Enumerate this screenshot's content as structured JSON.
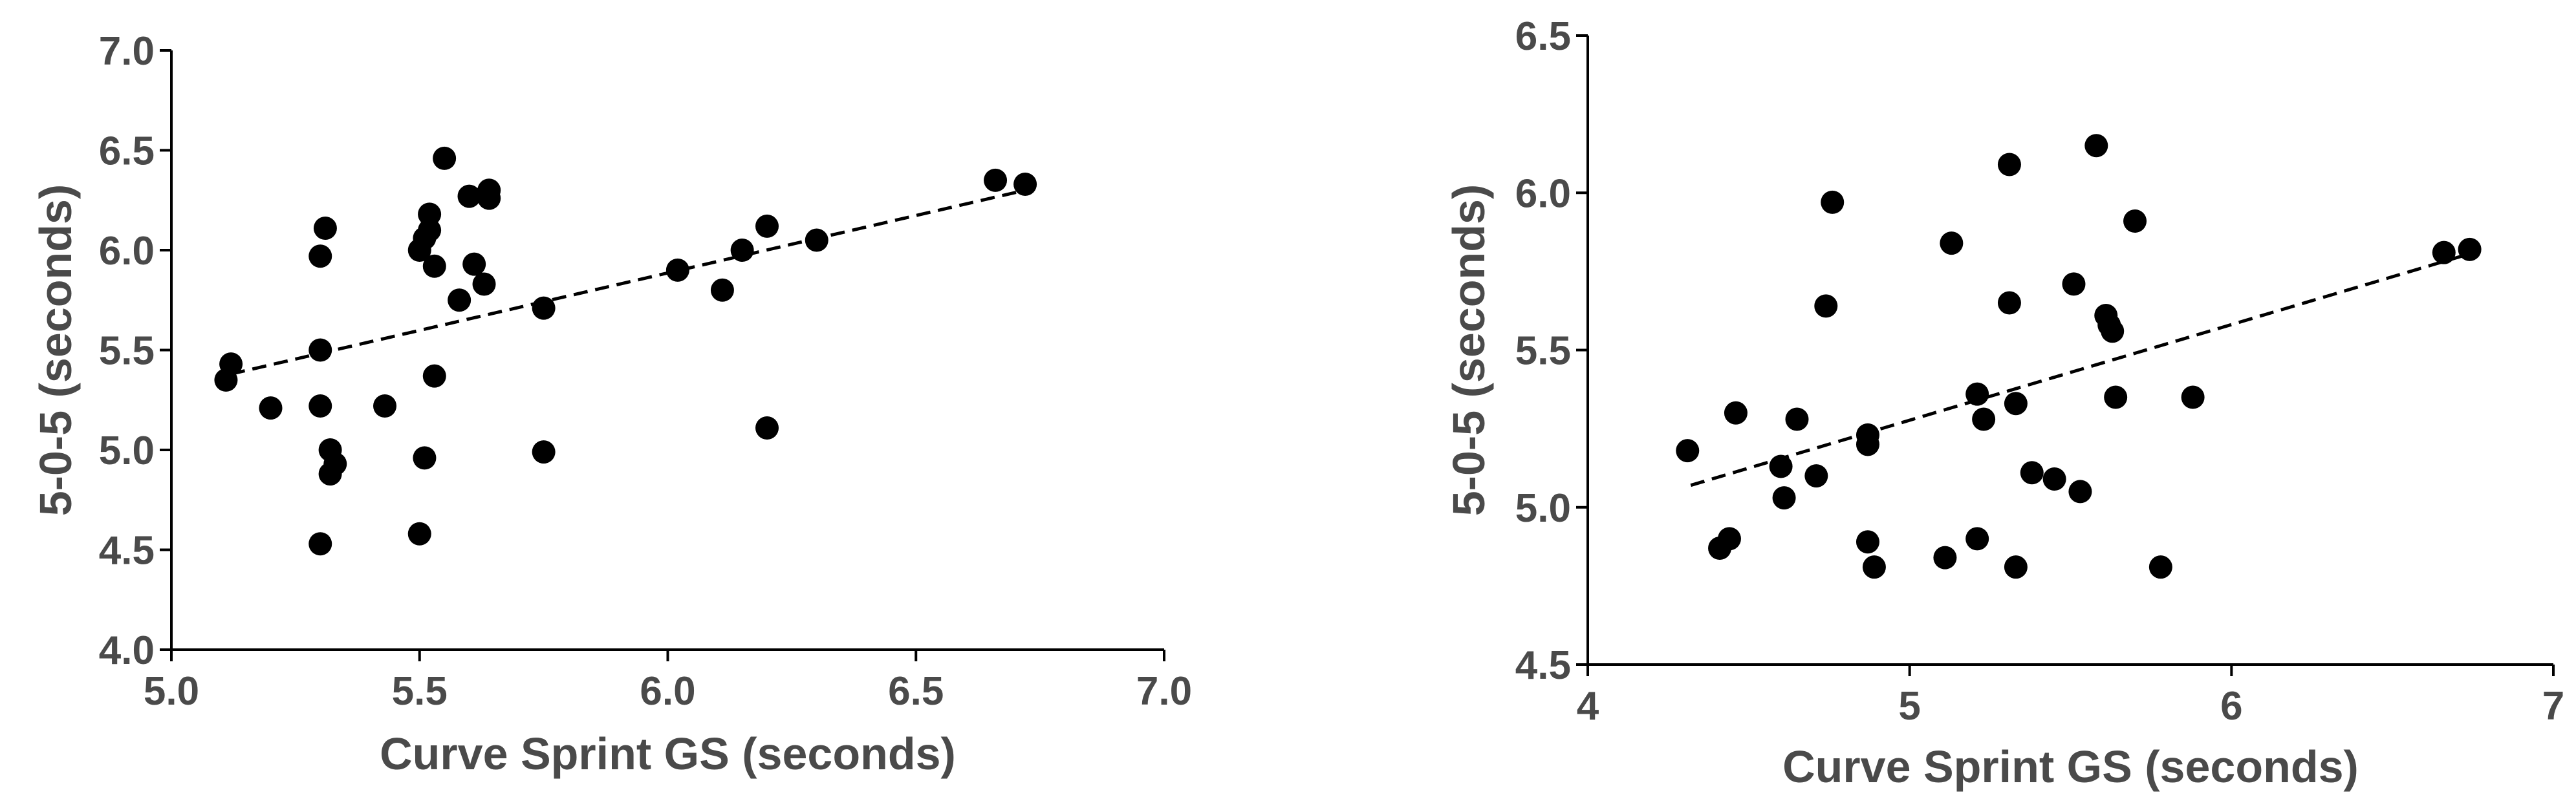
{
  "chart_data": [
    {
      "type": "scatter",
      "xlabel": "Curve Sprint GS (seconds)",
      "ylabel": "5-0-5 (seconds)",
      "xlim": [
        5.0,
        7.0
      ],
      "ylim": [
        4.0,
        7.0
      ],
      "xticks": [
        "5.0",
        "5.5",
        "6.0",
        "6.5",
        "7.0"
      ],
      "yticks": [
        "4.0",
        "4.5",
        "5.0",
        "5.5",
        "6.0",
        "6.5",
        "7.0"
      ],
      "trendline": {
        "style": "dashed",
        "x": [
          5.12,
          6.72
        ],
        "y": [
          5.38,
          6.3
        ]
      },
      "points": [
        {
          "x": 5.11,
          "y": 5.35
        },
        {
          "x": 5.12,
          "y": 5.43
        },
        {
          "x": 5.2,
          "y": 5.21
        },
        {
          "x": 5.3,
          "y": 5.5
        },
        {
          "x": 5.3,
          "y": 5.97
        },
        {
          "x": 5.31,
          "y": 6.11
        },
        {
          "x": 5.3,
          "y": 5.22
        },
        {
          "x": 5.3,
          "y": 4.53
        },
        {
          "x": 5.32,
          "y": 5.0
        },
        {
          "x": 5.33,
          "y": 4.93
        },
        {
          "x": 5.32,
          "y": 4.88
        },
        {
          "x": 5.43,
          "y": 5.22
        },
        {
          "x": 5.5,
          "y": 6.0
        },
        {
          "x": 5.51,
          "y": 6.06
        },
        {
          "x": 5.52,
          "y": 6.18
        },
        {
          "x": 5.52,
          "y": 6.1
        },
        {
          "x": 5.53,
          "y": 5.92
        },
        {
          "x": 5.53,
          "y": 5.37
        },
        {
          "x": 5.51,
          "y": 4.96
        },
        {
          "x": 5.5,
          "y": 4.58
        },
        {
          "x": 5.55,
          "y": 6.46
        },
        {
          "x": 5.58,
          "y": 5.75
        },
        {
          "x": 5.6,
          "y": 6.27
        },
        {
          "x": 5.61,
          "y": 5.93
        },
        {
          "x": 5.63,
          "y": 5.83
        },
        {
          "x": 5.64,
          "y": 6.3
        },
        {
          "x": 5.64,
          "y": 6.26
        },
        {
          "x": 5.75,
          "y": 5.71
        },
        {
          "x": 5.75,
          "y": 4.99
        },
        {
          "x": 6.02,
          "y": 5.9
        },
        {
          "x": 6.11,
          "y": 5.8
        },
        {
          "x": 6.15,
          "y": 6.0
        },
        {
          "x": 6.2,
          "y": 6.12
        },
        {
          "x": 6.2,
          "y": 5.11
        },
        {
          "x": 6.3,
          "y": 6.05
        },
        {
          "x": 6.66,
          "y": 6.35
        },
        {
          "x": 6.72,
          "y": 6.33
        }
      ]
    },
    {
      "type": "scatter",
      "xlabel": "Curve Sprint GS (seconds)",
      "ylabel": "5-0-5 (seconds)",
      "xlim": [
        4,
        7
      ],
      "ylim": [
        4.5,
        6.5
      ],
      "xticks": [
        "4",
        "5",
        "6",
        "7"
      ],
      "yticks": [
        "4.5",
        "5.0",
        "5.5",
        "6.0",
        "6.5"
      ],
      "trendline": {
        "style": "dashed",
        "x": [
          4.32,
          6.72
        ],
        "y": [
          5.07,
          5.8
        ]
      },
      "points": [
        {
          "x": 4.31,
          "y": 5.18
        },
        {
          "x": 4.41,
          "y": 4.87
        },
        {
          "x": 4.44,
          "y": 4.9
        },
        {
          "x": 4.46,
          "y": 5.3
        },
        {
          "x": 4.6,
          "y": 5.13
        },
        {
          "x": 4.61,
          "y": 5.03
        },
        {
          "x": 4.65,
          "y": 5.28
        },
        {
          "x": 4.71,
          "y": 5.1
        },
        {
          "x": 4.74,
          "y": 5.64
        },
        {
          "x": 4.76,
          "y": 5.97
        },
        {
          "x": 4.87,
          "y": 5.2
        },
        {
          "x": 4.87,
          "y": 5.23
        },
        {
          "x": 4.87,
          "y": 4.89
        },
        {
          "x": 4.89,
          "y": 4.81
        },
        {
          "x": 5.11,
          "y": 4.84
        },
        {
          "x": 5.13,
          "y": 5.84
        },
        {
          "x": 5.21,
          "y": 5.36
        },
        {
          "x": 5.21,
          "y": 4.9
        },
        {
          "x": 5.23,
          "y": 5.28
        },
        {
          "x": 5.31,
          "y": 6.09
        },
        {
          "x": 5.31,
          "y": 5.65
        },
        {
          "x": 5.33,
          "y": 5.33
        },
        {
          "x": 5.33,
          "y": 4.81
        },
        {
          "x": 5.38,
          "y": 5.11
        },
        {
          "x": 5.45,
          "y": 5.09
        },
        {
          "x": 5.51,
          "y": 5.71
        },
        {
          "x": 5.53,
          "y": 5.05
        },
        {
          "x": 5.58,
          "y": 6.15
        },
        {
          "x": 5.61,
          "y": 5.61
        },
        {
          "x": 5.62,
          "y": 5.58
        },
        {
          "x": 5.63,
          "y": 5.56
        },
        {
          "x": 5.64,
          "y": 5.35
        },
        {
          "x": 5.7,
          "y": 5.91
        },
        {
          "x": 5.78,
          "y": 4.81
        },
        {
          "x": 5.88,
          "y": 5.35
        },
        {
          "x": 6.66,
          "y": 5.81
        },
        {
          "x": 6.74,
          "y": 5.82
        }
      ]
    }
  ]
}
